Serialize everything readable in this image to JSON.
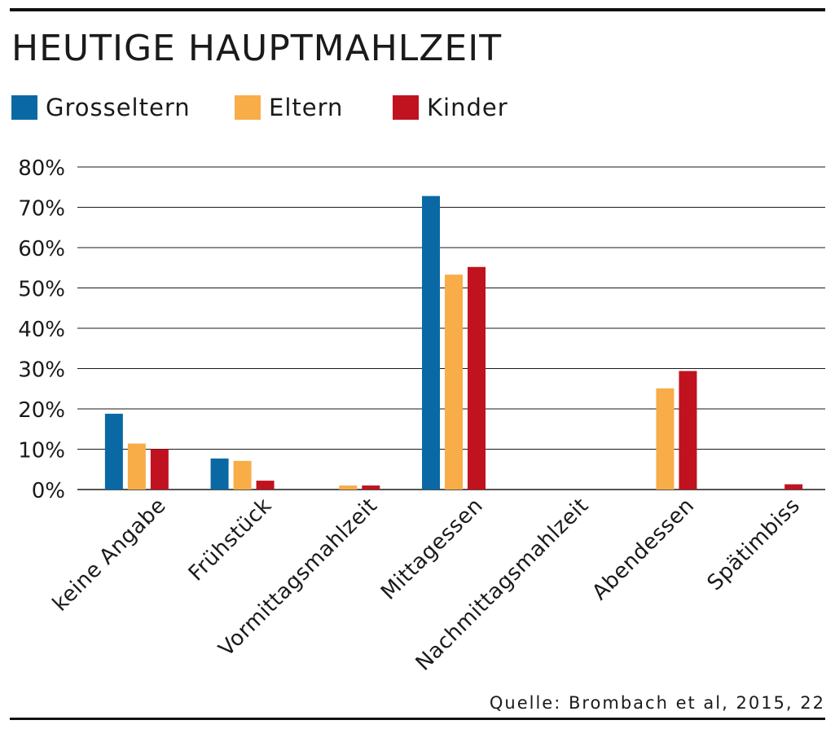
{
  "title": "HEUTIGE HAUPTMAHLZEIT",
  "legend": [
    {
      "label": "Grosseltern",
      "color": "#0a69a4"
    },
    {
      "label": "Eltern",
      "color": "#f8ad48"
    },
    {
      "label": "Kinder",
      "color": "#c1121f"
    }
  ],
  "source": "Quelle: Brombach et al, 2015, 22",
  "chart_data": {
    "type": "bar",
    "title": "HEUTIGE HAUPTMAHLZEIT",
    "categories": [
      "keine Angabe",
      "Frühstück",
      "Vormittagsmahlzeit",
      "Mittagessen",
      "Nachmittagsmahlzeit",
      "Abendessen",
      "Spätimbiss"
    ],
    "series": [
      {
        "name": "Grosseltern",
        "color": "#0a69a4",
        "values": [
          18.8,
          7.7,
          0,
          72.8,
          0,
          0,
          0
        ]
      },
      {
        "name": "Eltern",
        "color": "#f8ad48",
        "values": [
          11.4,
          7.1,
          1.0,
          53.3,
          0,
          25.1,
          0
        ]
      },
      {
        "name": "Kinder",
        "color": "#c1121f",
        "values": [
          10.0,
          2.2,
          1.0,
          55.2,
          0,
          29.4,
          1.3
        ]
      }
    ],
    "yticks": [
      "0%",
      "10%",
      "20%",
      "30%",
      "40%",
      "50%",
      "60%",
      "70%",
      "80%"
    ],
    "ylim": [
      0,
      80
    ],
    "grid": true,
    "legend_position": "top-left"
  }
}
